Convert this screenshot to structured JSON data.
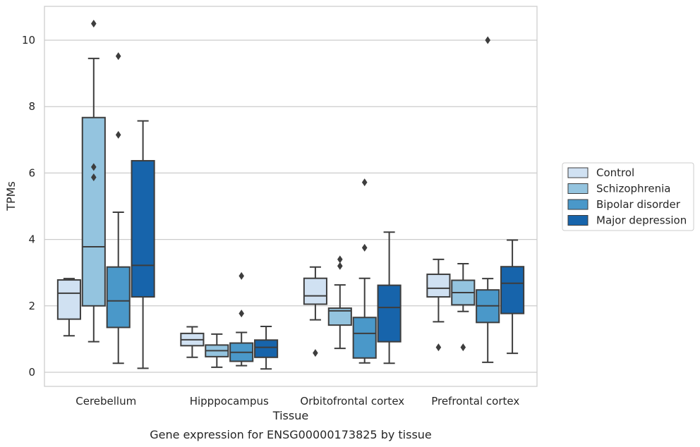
{
  "chart_data": {
    "type": "boxplot",
    "caption": "Gene expression for ENSG00000173825 by tissue",
    "xlabel": "Tissue",
    "ylabel": "TPMs",
    "ylim": [
      -0.4,
      11
    ],
    "yticks": [
      0,
      2,
      4,
      6,
      8,
      10
    ],
    "grid": "horizontal",
    "legend_position": "right",
    "categories": [
      "Cerebellum",
      "Hipppocampus",
      "Orbitofrontal cortex",
      "Prefrontal cortex"
    ],
    "series": [
      {
        "name": "Control",
        "color": "#d0e1f2",
        "boxes": [
          {
            "whislo": 1.1,
            "q1": 1.6,
            "med": 2.38,
            "q3": 2.78,
            "whishi": 2.82,
            "fliers": []
          },
          {
            "whislo": 0.45,
            "q1": 0.8,
            "med": 0.98,
            "q3": 1.17,
            "whishi": 1.37,
            "fliers": []
          },
          {
            "whislo": 1.58,
            "q1": 2.05,
            "med": 2.3,
            "q3": 2.83,
            "whishi": 3.17,
            "fliers": [
              0.58
            ]
          },
          {
            "whislo": 1.52,
            "q1": 2.27,
            "med": 2.53,
            "q3": 2.95,
            "whishi": 3.4,
            "fliers": [
              0.75
            ]
          }
        ]
      },
      {
        "name": "Schizophrenia",
        "color": "#94c4df",
        "boxes": [
          {
            "whislo": 0.92,
            "q1": 2.0,
            "med": 3.78,
            "q3": 7.67,
            "whishi": 9.45,
            "fliers": [
              5.87,
              6.18,
              10.5
            ]
          },
          {
            "whislo": 0.15,
            "q1": 0.47,
            "med": 0.65,
            "q3": 0.82,
            "whishi": 1.15,
            "fliers": []
          },
          {
            "whislo": 0.72,
            "q1": 1.42,
            "med": 1.85,
            "q3": 1.93,
            "whishi": 2.63,
            "fliers": [
              3.2,
              3.4
            ]
          },
          {
            "whislo": 1.83,
            "q1": 2.03,
            "med": 2.4,
            "q3": 2.77,
            "whishi": 3.27,
            "fliers": [
              0.75
            ]
          }
        ]
      },
      {
        "name": "Bipolar disorder",
        "color": "#4a98c9",
        "boxes": [
          {
            "whislo": 0.27,
            "q1": 1.35,
            "med": 2.15,
            "q3": 3.17,
            "whishi": 4.82,
            "fliers": [
              7.15,
              9.52
            ]
          },
          {
            "whislo": 0.2,
            "q1": 0.33,
            "med": 0.6,
            "q3": 0.88,
            "whishi": 1.2,
            "fliers": [
              1.77,
              2.9
            ]
          },
          {
            "whislo": 0.28,
            "q1": 0.43,
            "med": 1.17,
            "q3": 1.65,
            "whishi": 2.83,
            "fliers": [
              3.75,
              5.72
            ]
          },
          {
            "whislo": 0.3,
            "q1": 1.5,
            "med": 2.0,
            "q3": 2.48,
            "whishi": 2.82,
            "fliers": [
              10.0
            ]
          }
        ]
      },
      {
        "name": "Major depression",
        "color": "#1764ab",
        "boxes": [
          {
            "whislo": 0.12,
            "q1": 2.27,
            "med": 3.22,
            "q3": 6.37,
            "whishi": 7.57,
            "fliers": []
          },
          {
            "whislo": 0.1,
            "q1": 0.45,
            "med": 0.75,
            "q3": 0.97,
            "whishi": 1.38,
            "fliers": []
          },
          {
            "whislo": 0.27,
            "q1": 0.92,
            "med": 1.95,
            "q3": 2.62,
            "whishi": 4.22,
            "fliers": []
          },
          {
            "whislo": 0.57,
            "q1": 1.77,
            "med": 2.68,
            "q3": 3.18,
            "whishi": 3.98,
            "fliers": []
          }
        ]
      }
    ]
  }
}
